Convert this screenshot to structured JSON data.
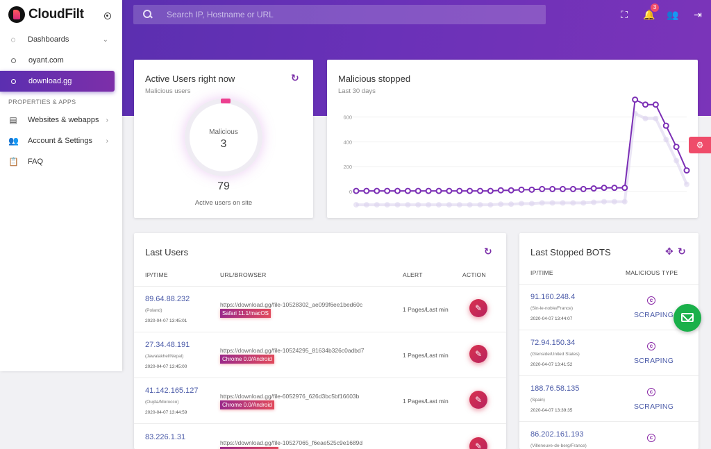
{
  "brand": {
    "name": "CloudFilt"
  },
  "search": {
    "placeholder": "Search IP, Hostname or URL"
  },
  "topbar": {
    "notifications_count": "3"
  },
  "sidebar": {
    "dashboards_label": "Dashboards",
    "sites": [
      "oyant.com",
      "download.gg"
    ],
    "section_label": "PROPERTIES & APPS",
    "items": [
      {
        "label": "Websites & webapps",
        "icon": "browser-icon"
      },
      {
        "label": "Account & Settings",
        "icon": "people-icon"
      },
      {
        "label": "FAQ",
        "icon": "clipboard-icon"
      }
    ]
  },
  "active_users": {
    "title": "Active Users right now",
    "subtitle": "Malicious users",
    "ring_label": "Malicious",
    "malicious_count": "3",
    "active_count": "79",
    "active_caption": "Active users on site"
  },
  "malicious_stopped": {
    "title": "Malicious stopped",
    "subtitle": "Last 30 days"
  },
  "chart_data": {
    "type": "line",
    "yticks": [
      "0",
      "200",
      "400",
      "600"
    ],
    "ylim": [
      0,
      760
    ],
    "series": [
      {
        "values": [
          5,
          5,
          5,
          5,
          5,
          5,
          5,
          5,
          5,
          5,
          5,
          5,
          5,
          5,
          10,
          10,
          15,
          15,
          20,
          20,
          20,
          20,
          20,
          25,
          30,
          30,
          30,
          740,
          700,
          700,
          530,
          360,
          170
        ]
      }
    ],
    "colors": {
      "line": "#7b2fb5",
      "shadow": "#dcd3ee"
    }
  },
  "last_users": {
    "title": "Last Users",
    "columns": [
      "IP/TIME",
      "URL/BROWSER",
      "ALERT",
      "ACTION"
    ],
    "rows": [
      {
        "ip": "89.64.88.232",
        "loc": "(Poland)",
        "time": "2020-04-07 13:45:01",
        "url": "https://download.gg/file-10528302_ae099f6ee1bed60c",
        "browser": "Safari 11.1/macOS",
        "alert": "1 Pages/Last min"
      },
      {
        "ip": "27.34.48.191",
        "loc": "(Jawalakhel/Nepal)",
        "time": "2020-04-07 13:45:00",
        "url": "https://download.gg/file-10524295_81634b326c0adbd7",
        "browser": "Chrome 0.0/Android",
        "alert": "1 Pages/Last min"
      },
      {
        "ip": "41.142.165.127",
        "loc": "(Oujda/Morocco)",
        "time": "2020-04-07 13:44:59",
        "url": "https://download.gg/file-6052976_626d3bc5bf16603b",
        "browser": "Chrome 0.0/Android",
        "alert": "1 Pages/Last min"
      },
      {
        "ip": "83.226.1.31",
        "loc": "",
        "time": "",
        "url": "https://download.gg/file-10527065_f6eae525c9e1689d",
        "browser": "",
        "alert": ""
      }
    ]
  },
  "last_bots": {
    "title": "Last Stopped BOTS",
    "columns": [
      "IP/TIME",
      "MALICIOUS TYPE"
    ],
    "rows": [
      {
        "ip": "91.160.248.4",
        "loc": "(Sin-le-noble/France)",
        "time": "2020-04-07 13:44:07",
        "type": "SCRAPING"
      },
      {
        "ip": "72.94.150.34",
        "loc": "(Glenside/United States)",
        "time": "2020-04-07 13:41:52",
        "type": "SCRAPING"
      },
      {
        "ip": "188.76.58.135",
        "loc": "(Spain)",
        "time": "2020-04-07 13:39:35",
        "type": "SCRAPING"
      },
      {
        "ip": "86.202.161.193",
        "loc": "(Villeneuve-de-berg/France)",
        "time": "",
        "type": ""
      }
    ]
  }
}
